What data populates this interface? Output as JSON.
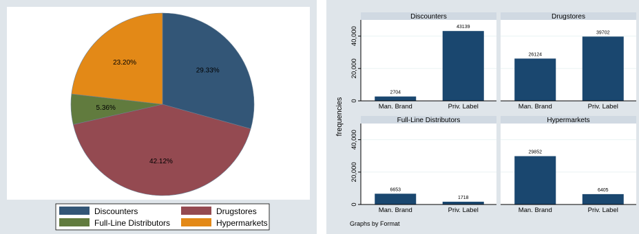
{
  "chart_data": [
    {
      "type": "pie",
      "slices": [
        {
          "label": "Discounters",
          "value": 29.33,
          "display": "29.33%",
          "color": "#335677"
        },
        {
          "label": "Drugstores",
          "value": 42.12,
          "display": "42.12%",
          "color": "#944a51"
        },
        {
          "label": "Full-Line Distributors",
          "value": 5.36,
          "display": "5.36%",
          "color": "#617b3e"
        },
        {
          "label": "Hypermarkets",
          "value": 23.2,
          "display": "23.20%",
          "color": "#e38917"
        }
      ],
      "legend": [
        "Discounters",
        "Drugstores",
        "Full-Line Distributors",
        "Hypermarkets"
      ],
      "legend_position": "bottom"
    },
    {
      "type": "bar",
      "ylabel": "frequencies",
      "ylim": [
        0,
        50000
      ],
      "yticks": [
        0,
        20000,
        40000
      ],
      "ytick_labels": [
        "0",
        "20,000",
        "40,000"
      ],
      "categories": [
        "Man. Brand",
        "Priv. Label"
      ],
      "bar_color": "#1a476f",
      "panels": [
        {
          "title": "Discounters",
          "values": [
            2704,
            43139
          ]
        },
        {
          "title": "Drugstores",
          "values": [
            26124,
            39702
          ]
        },
        {
          "title": "Full-Line Distributors",
          "values": [
            6653,
            1718
          ]
        },
        {
          "title": "Hypermarkets",
          "values": [
            29852,
            6405
          ]
        }
      ],
      "note": "Graphs by Format"
    }
  ]
}
